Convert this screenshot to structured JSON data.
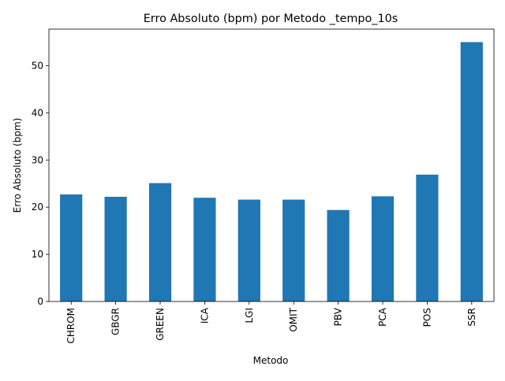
{
  "chart_data": {
    "type": "bar",
    "title": "Erro Absoluto (bpm) por Metodo _tempo_10s",
    "xlabel": "Metodo",
    "ylabel": "Erro Absoluto (bpm)",
    "categories": [
      "CHROM",
      "GBGR",
      "GREEN",
      "ICA",
      "LGI",
      "OMIT",
      "PBV",
      "PCA",
      "POS",
      "SSR"
    ],
    "values": [
      22.7,
      22.2,
      25.1,
      22.0,
      21.6,
      21.6,
      19.4,
      22.3,
      26.9,
      55.0
    ],
    "ylim": [
      0,
      57.75
    ],
    "yticks": [
      0,
      10,
      20,
      30,
      40,
      50
    ],
    "grid": false,
    "legend": "none",
    "bar_color": "#1f77b4"
  }
}
